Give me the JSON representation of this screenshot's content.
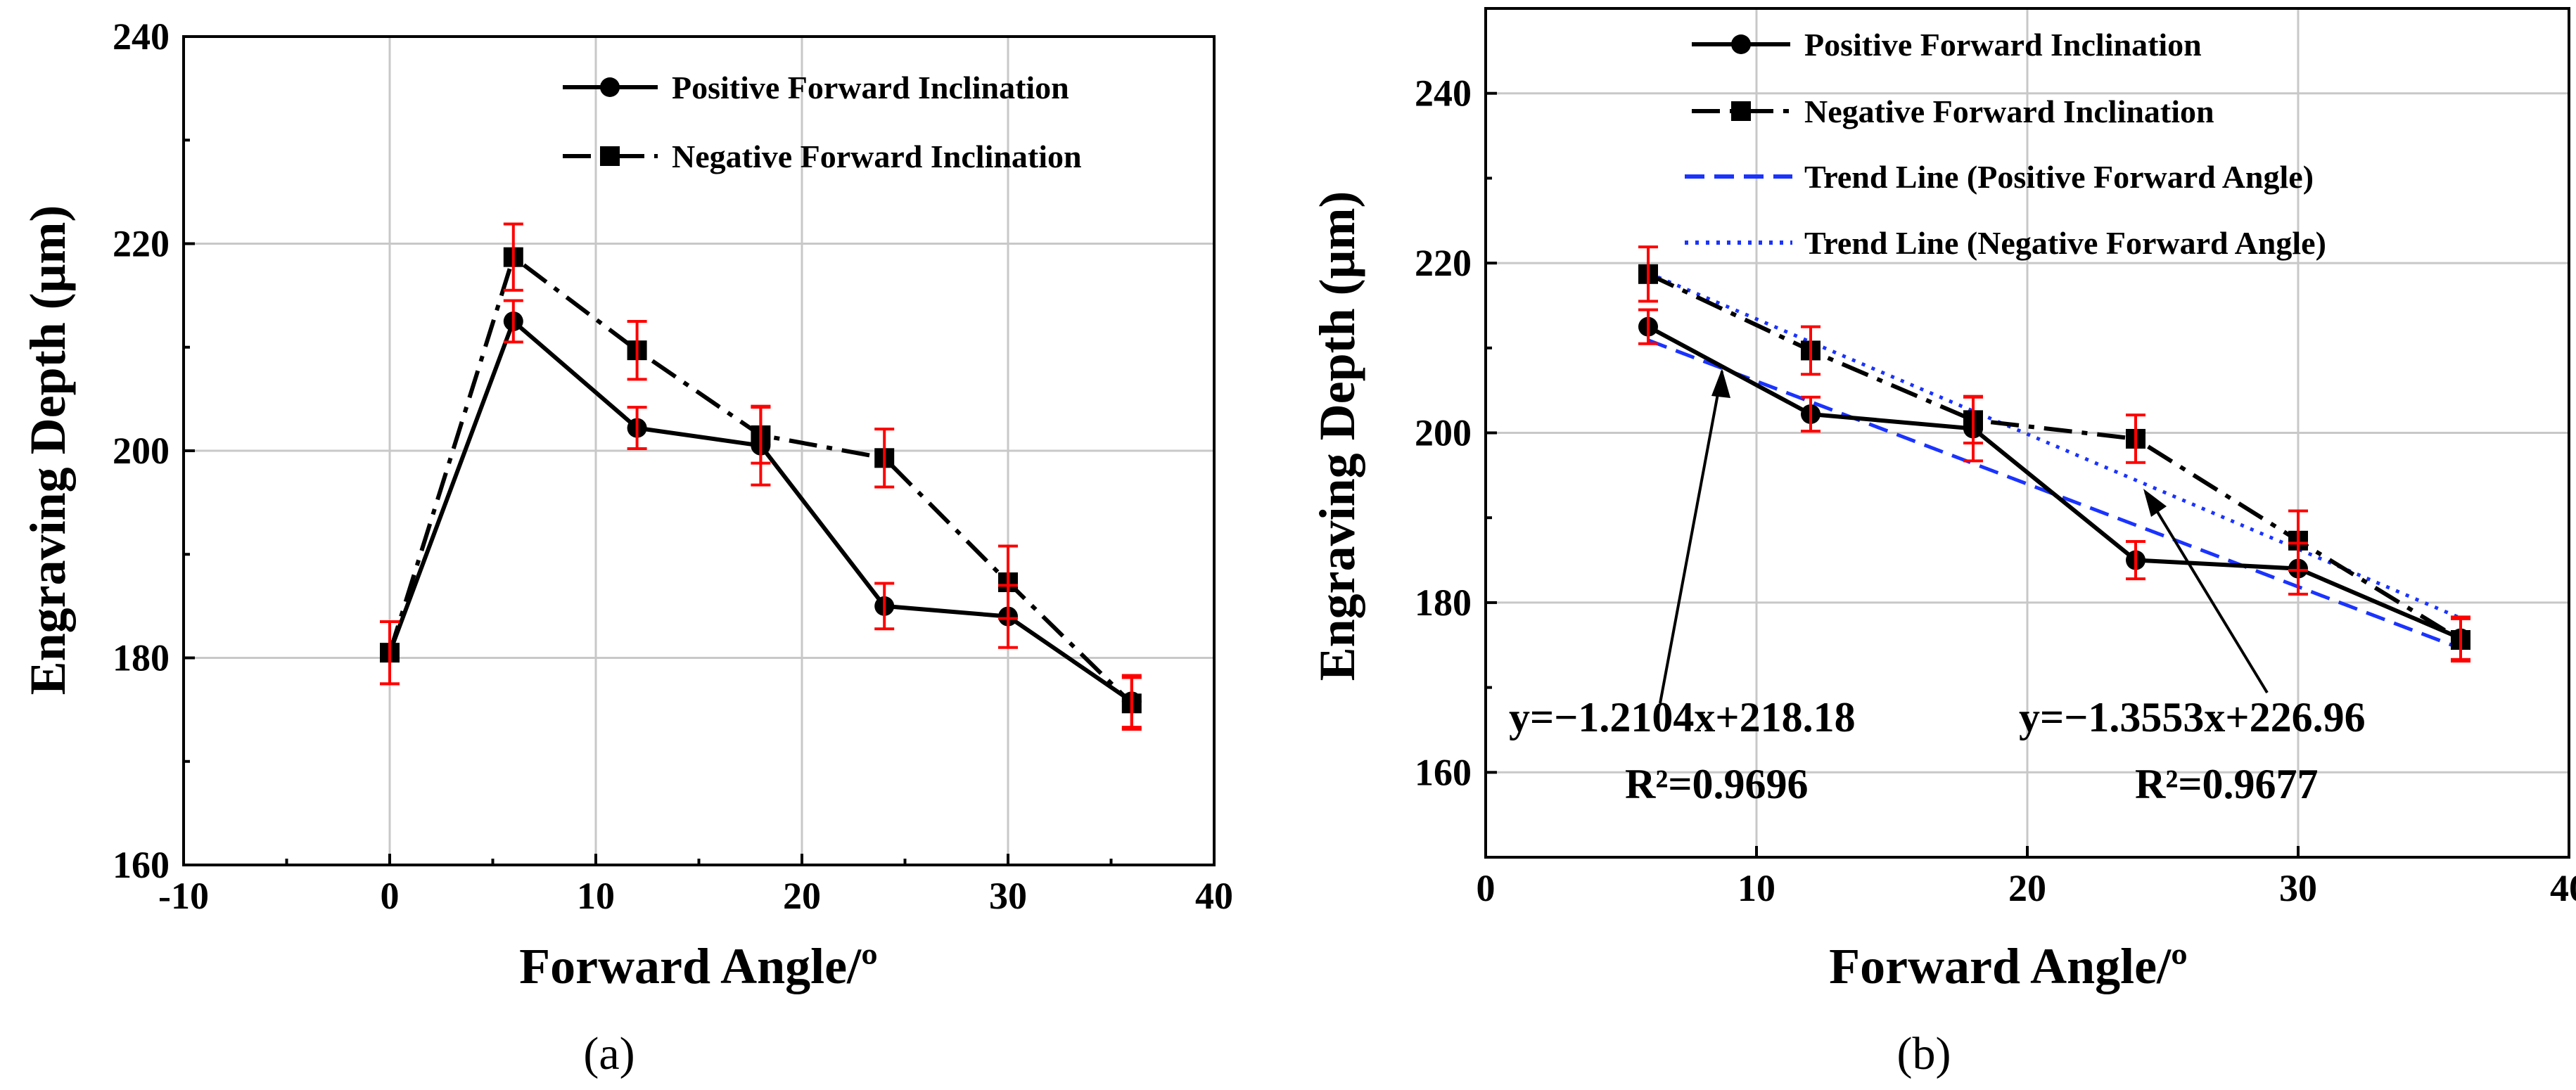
{
  "chart_data": [
    {
      "type": "line",
      "panel_label": "(a)",
      "xlabel": "Forward Angle/º",
      "ylabel": "Engraving Depth (μm)",
      "xlim": [
        -10,
        40
      ],
      "ylim": [
        160,
        240
      ],
      "xticks": [
        -10,
        0,
        10,
        20,
        30,
        40
      ],
      "yticks": [
        160,
        180,
        200,
        220,
        240
      ],
      "grid": true,
      "legend_position": "top-right",
      "series": [
        {
          "name": "Positive Forward Inclination",
          "marker": "circle",
          "line_style": "solid",
          "x": [
            0,
            6,
            12,
            18,
            24,
            30,
            36
          ],
          "y": [
            180.5,
            212.5,
            202.2,
            200.5,
            185,
            184,
            175.8
          ],
          "err": [
            3,
            2,
            2,
            3.8,
            2.2,
            3,
            2.5
          ]
        },
        {
          "name": "Negative Forward Inclination",
          "marker": "square",
          "line_style": "dash-dot",
          "x": [
            0,
            6,
            12,
            18,
            24,
            30,
            36
          ],
          "y": [
            180.5,
            218.7,
            209.7,
            201.5,
            199.3,
            187.3,
            175.6
          ],
          "err": [
            3,
            3.2,
            2.8,
            2.7,
            2.8,
            3.5,
            2.5
          ]
        }
      ]
    },
    {
      "type": "line",
      "panel_label": "(b)",
      "xlabel": "Forward Angle/º",
      "ylabel": "Engraving Depth (μm)",
      "xlim": [
        0,
        40
      ],
      "ylim": [
        150,
        250
      ],
      "xticks": [
        0,
        10,
        20,
        30,
        40
      ],
      "yticks": [
        160,
        180,
        200,
        220,
        240
      ],
      "grid": true,
      "legend_position": "top",
      "series": [
        {
          "name": "Positive Forward Inclination",
          "marker": "circle",
          "line_style": "solid",
          "x": [
            6,
            12,
            18,
            24,
            30,
            36
          ],
          "y": [
            212.5,
            202.2,
            200.5,
            185,
            184,
            175.8
          ],
          "err": [
            2,
            2,
            3.8,
            2.2,
            3,
            2.5
          ]
        },
        {
          "name": "Negative Forward Inclination",
          "marker": "square",
          "line_style": "dash-dot",
          "x": [
            6,
            12,
            18,
            24,
            30,
            36
          ],
          "y": [
            218.7,
            209.7,
            201.5,
            199.3,
            187.3,
            175.6
          ],
          "err": [
            3.2,
            2.8,
            2.7,
            2.8,
            3.5,
            2.5
          ]
        },
        {
          "name": "Trend Line (Positive Forward Angle)",
          "line_style": "dashed",
          "color": "#1a33ff",
          "slope": -1.2104,
          "intercept": 218.18,
          "x_range": [
            6,
            36
          ]
        },
        {
          "name": "Trend Line (Negative  Forward Angle)",
          "line_style": "dotted",
          "color": "#1a33ff",
          "slope": -1.3553,
          "intercept": 226.96,
          "x_range": [
            6,
            36
          ]
        }
      ],
      "annotations": [
        {
          "equation": "y=−1.2104x+218.18",
          "r2": "R²=0.9696",
          "arrow_to_x": 10
        },
        {
          "equation": "y=−1.3553x+226.96",
          "r2": "R²=0.9677",
          "arrow_to_x": 25
        }
      ]
    }
  ],
  "style": {
    "line_color": "#000000",
    "errorbar_color": "#ff0000",
    "trend_color": "#1a33ff",
    "grid_color": "#c8c8c8"
  }
}
